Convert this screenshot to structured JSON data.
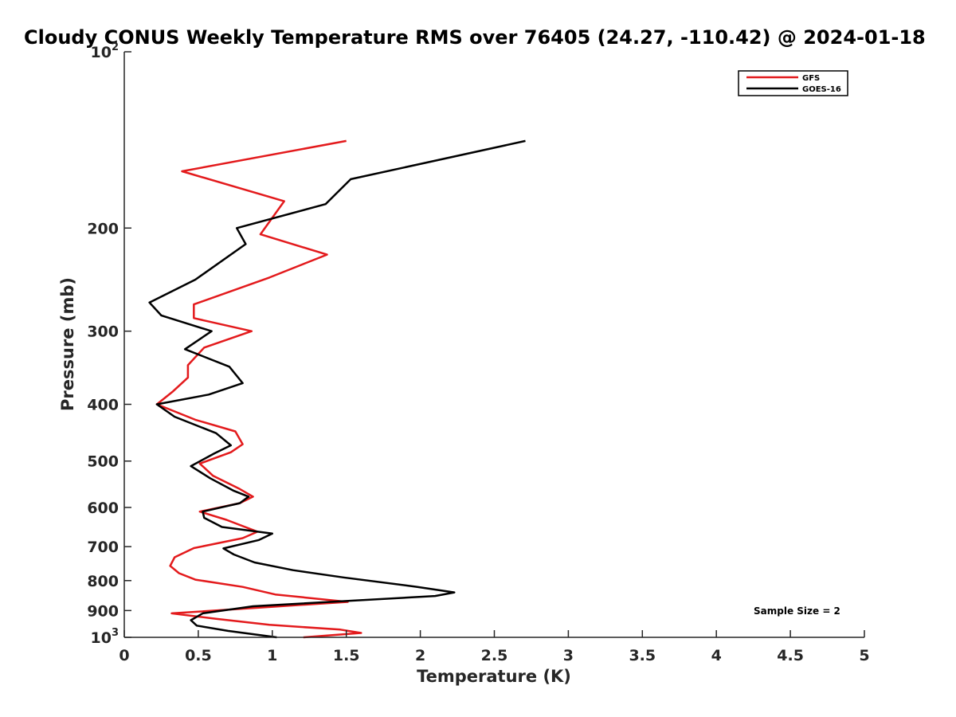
{
  "chart_data": {
    "type": "line",
    "title": "Cloudy CONUS Weekly Temperature RMS over 76405 (24.27, -110.42) @ 2024-01-18",
    "xlabel": "Temperature (K)",
    "ylabel": "Pressure (mb)",
    "xlim": [
      0,
      5
    ],
    "ylim": [
      100,
      1000
    ],
    "yscale": "log",
    "y_reversed": true,
    "grid": false,
    "legend_position": "top-right",
    "x_ticks": [
      0,
      0.5,
      1,
      1.5,
      2,
      2.5,
      3,
      3.5,
      4,
      4.5,
      5
    ],
    "x_tick_labels": [
      "0",
      "0.5",
      "1",
      "1.5",
      "2",
      "2.5",
      "3",
      "3.5",
      "4",
      "4.5",
      "5"
    ],
    "y_ticks": [
      {
        "value": 100,
        "base": "10",
        "exp": "2"
      },
      {
        "value": 200,
        "label": "200"
      },
      {
        "value": 300,
        "label": "300"
      },
      {
        "value": 400,
        "label": "400"
      },
      {
        "value": 500,
        "label": "500"
      },
      {
        "value": 600,
        "label": "600"
      },
      {
        "value": 700,
        "label": "700"
      },
      {
        "value": 800,
        "label": "800"
      },
      {
        "value": 900,
        "label": "900"
      },
      {
        "value": 1000,
        "base": "10",
        "exp": "3"
      }
    ],
    "annotation": "Sample Size = 2",
    "series": [
      {
        "name": "GFS",
        "color": "#e31a1c",
        "points": [
          [
            1.5,
            142
          ],
          [
            0.39,
            160
          ],
          [
            1.08,
            180
          ],
          [
            0.92,
            205
          ],
          [
            1.37,
            222
          ],
          [
            0.98,
            243
          ],
          [
            0.47,
            270
          ],
          [
            0.47,
            285
          ],
          [
            0.86,
            300
          ],
          [
            0.54,
            320
          ],
          [
            0.43,
            343
          ],
          [
            0.43,
            360
          ],
          [
            0.33,
            380
          ],
          [
            0.22,
            400
          ],
          [
            0.48,
            425
          ],
          [
            0.75,
            445
          ],
          [
            0.8,
            468
          ],
          [
            0.72,
            483
          ],
          [
            0.51,
            505
          ],
          [
            0.6,
            530
          ],
          [
            0.78,
            558
          ],
          [
            0.87,
            575
          ],
          [
            0.78,
            590
          ],
          [
            0.51,
            610
          ],
          [
            0.69,
            630
          ],
          [
            0.9,
            660
          ],
          [
            0.8,
            677
          ],
          [
            0.47,
            704
          ],
          [
            0.34,
            730
          ],
          [
            0.31,
            755
          ],
          [
            0.37,
            777
          ],
          [
            0.48,
            797
          ],
          [
            0.8,
            820
          ],
          [
            1.02,
            845
          ],
          [
            1.51,
            870
          ],
          [
            0.32,
            910
          ],
          [
            0.62,
            930
          ],
          [
            0.98,
            952
          ],
          [
            1.46,
            970
          ],
          [
            1.6,
            983
          ],
          [
            1.21,
            1000
          ]
        ]
      },
      {
        "name": "GOES-16",
        "color": "#000000",
        "points": [
          [
            2.71,
            142
          ],
          [
            1.53,
            165
          ],
          [
            1.36,
            182
          ],
          [
            0.76,
            200
          ],
          [
            0.82,
            213
          ],
          [
            0.48,
            245
          ],
          [
            0.17,
            268
          ],
          [
            0.25,
            282
          ],
          [
            0.59,
            300
          ],
          [
            0.41,
            322
          ],
          [
            0.71,
            345
          ],
          [
            0.8,
            368
          ],
          [
            0.57,
            385
          ],
          [
            0.22,
            400
          ],
          [
            0.34,
            420
          ],
          [
            0.62,
            448
          ],
          [
            0.72,
            470
          ],
          [
            0.61,
            485
          ],
          [
            0.45,
            510
          ],
          [
            0.58,
            535
          ],
          [
            0.74,
            562
          ],
          [
            0.84,
            575
          ],
          [
            0.78,
            590
          ],
          [
            0.53,
            610
          ],
          [
            0.54,
            625
          ],
          [
            0.66,
            648
          ],
          [
            1.0,
            665
          ],
          [
            0.91,
            682
          ],
          [
            0.67,
            705
          ],
          [
            0.74,
            722
          ],
          [
            0.88,
            745
          ],
          [
            1.14,
            768
          ],
          [
            1.48,
            790
          ],
          [
            1.98,
            820
          ],
          [
            2.23,
            838
          ],
          [
            2.1,
            850
          ],
          [
            0.87,
            885
          ],
          [
            0.53,
            910
          ],
          [
            0.45,
            935
          ],
          [
            0.49,
            955
          ],
          [
            0.7,
            975
          ],
          [
            1.03,
            1000
          ]
        ]
      }
    ]
  }
}
